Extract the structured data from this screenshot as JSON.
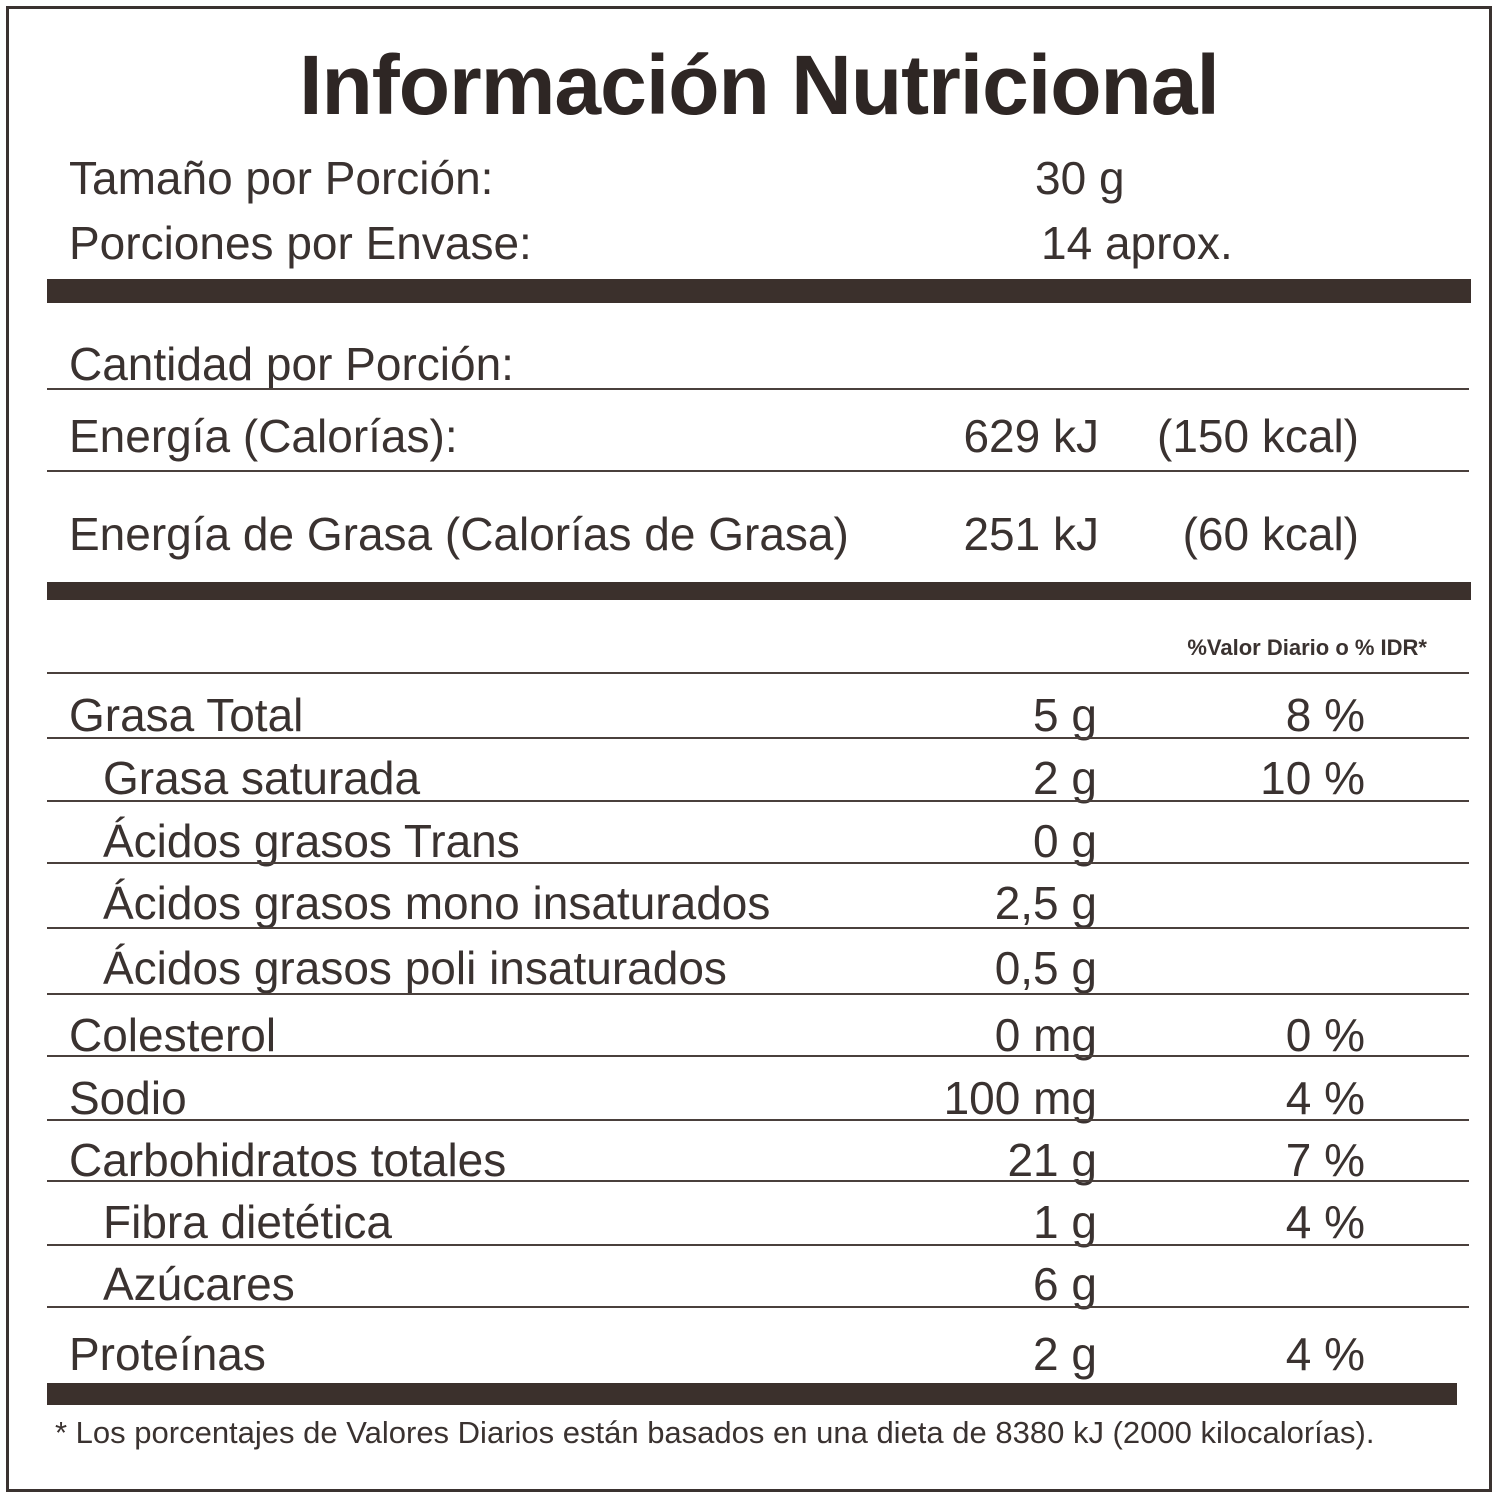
{
  "title": "Información Nutricional",
  "serving": {
    "size_label": "Tamaño por Porción:",
    "size_value": "30 g",
    "per_container_label": "Porciones por Envase:",
    "per_container_value": "14 aprox."
  },
  "amount_per_serving": "Cantidad por Porción:",
  "energy": {
    "label": "Energía (Calorías):",
    "kj": "629 kJ",
    "kcal": "(150 kcal)"
  },
  "fat_energy": {
    "label": "Energía de Grasa (Calorías de Grasa)",
    "kj": "251 kJ",
    "kcal": "(60 kcal)"
  },
  "dv_header": "%Valor Diario o % IDR*",
  "nutrients": [
    {
      "name": "Grasa Total",
      "amount": "5 g",
      "dv": "8 %"
    },
    {
      "name": "Grasa saturada",
      "amount": "2 g",
      "dv": "10 %"
    },
    {
      "name": "Ácidos grasos Trans",
      "amount": "0 g",
      "dv": ""
    },
    {
      "name": "Ácidos grasos mono insaturados",
      "amount": "2,5 g",
      "dv": ""
    },
    {
      "name": "Ácidos grasos poli insaturados",
      "amount": "0,5 g",
      "dv": ""
    },
    {
      "name": "Colesterol",
      "amount": "0 mg",
      "dv": "0 %"
    },
    {
      "name": "Sodio",
      "amount": "100 mg",
      "dv": "4 %"
    },
    {
      "name": "Carbohidratos totales",
      "amount": "21 g",
      "dv": "7 %"
    },
    {
      "name": "Fibra dietética",
      "amount": "1 g",
      "dv": "4 %"
    },
    {
      "name": "Azúcares",
      "amount": "6 g",
      "dv": ""
    },
    {
      "name": "Proteínas",
      "amount": "2 g",
      "dv": "4 %"
    }
  ],
  "footnote": "* Los porcentajes de Valores Diarios están basados en una dieta de 8380 kJ (2000 kilocalorías)."
}
